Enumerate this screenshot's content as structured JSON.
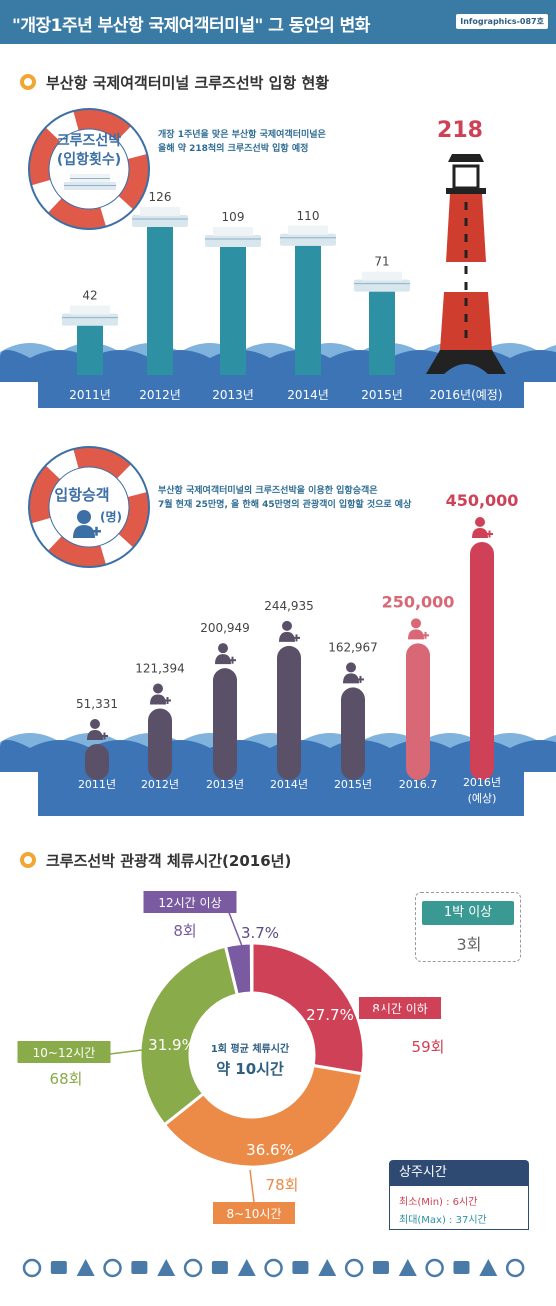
{
  "header": {
    "title": "\"개장1주년 부산항 국제여객터미널\" 그 동안의 변화",
    "code": "Infographics-087호"
  },
  "colors": {
    "header": "#3a7ba5",
    "teal_bar": "#2e91a3",
    "red_bar": "#cf4156",
    "pink_bar": "#d86876",
    "purple_bar": "#5a5068",
    "wave": "#3c74b6",
    "green": "#8aab49",
    "orange": "#ec8a47",
    "violet": "#7a5aa0"
  },
  "section1": {
    "title": "부산항 국제여객터미널 크루즈선박 입항 현황",
    "ring_label_1": "크루즈선박",
    "ring_label_2": "(입항횟수)",
    "note_line1": "개장 1주년을 맞은 부산항 국제여객터미널은",
    "note_line2": "올해 약 218척의 크루즈선박 입항 예정",
    "lighthouse_value": "218"
  },
  "section2": {
    "title_ring_1": "입항승객",
    "title_ring_2": "(명)",
    "note_line1": "부산항 국제여객터미널의 크루즈선박을 이용한 입항승객은",
    "note_line2": "7월 현재 25만명, 올 한해 45만명의 관광객이 입항할 것으로 예상"
  },
  "section3": {
    "title": "크루즈선박 관광객 체류시간(2016년)",
    "center_line1": "1회 평균 체류시간",
    "center_line2": "약 10시간",
    "overnight_label": "1박 이상",
    "overnight_count": "3회",
    "stay_title": "상주시간",
    "stay_min": "최소(Min) : 6시간",
    "stay_max": "최대(Max) : 37시간"
  },
  "chart_data": [
    {
      "type": "bar",
      "title": "부산항 국제여객터미널 크루즈선박 입항 현황",
      "categories": [
        "2011년",
        "2012년",
        "2013년",
        "2014년",
        "2015년",
        "2016년(예정)"
      ],
      "values": [
        42,
        126,
        109,
        110,
        71,
        218
      ],
      "labels": [
        "42",
        "126",
        "109",
        "110",
        "71",
        "218"
      ]
    },
    {
      "type": "bar",
      "categories": [
        "2011년",
        "2012년",
        "2013년",
        "2014년",
        "2015년",
        "2016.7",
        "2016년\n(예상)"
      ],
      "values": [
        51331,
        121394,
        200949,
        244935,
        162967,
        250000,
        450000
      ],
      "labels": [
        "51,331",
        "121,394",
        "200,949",
        "244,935",
        "162,967",
        "250,000",
        "450,000"
      ]
    },
    {
      "type": "pie",
      "title": "크루즈선박 관광객 체류시간(2016년)",
      "slices": [
        {
          "label": "8시간 이하",
          "percent": 27.7,
          "pct_label": "27.7%",
          "count": "59회",
          "color": "#cf4156"
        },
        {
          "label": "8~10시간",
          "percent": 36.6,
          "pct_label": "36.6%",
          "count": "78회",
          "color": "#ec8a47"
        },
        {
          "label": "10~12시간",
          "percent": 31.9,
          "pct_label": "31.9%",
          "count": "68회",
          "color": "#8aab49"
        },
        {
          "label": "12시간 이상",
          "percent": 3.7,
          "pct_label": "3.7%",
          "count": "8회",
          "color": "#7a5aa0"
        }
      ]
    }
  ],
  "footer_icons": [
    "ice-cream-icon",
    "utensils-icon",
    "clock-icon",
    "cocktail-icon",
    "camera-icon",
    "ship-icon",
    "suitcase-icon",
    "sun-icon",
    "plane-icon",
    "glasses-icon",
    "banana-icon",
    "pin-icon",
    "car-icon",
    "cloche-icon",
    "car2-icon",
    "wheel-icon",
    "flower-icon",
    "car3-icon",
    "ship2-icon"
  ]
}
